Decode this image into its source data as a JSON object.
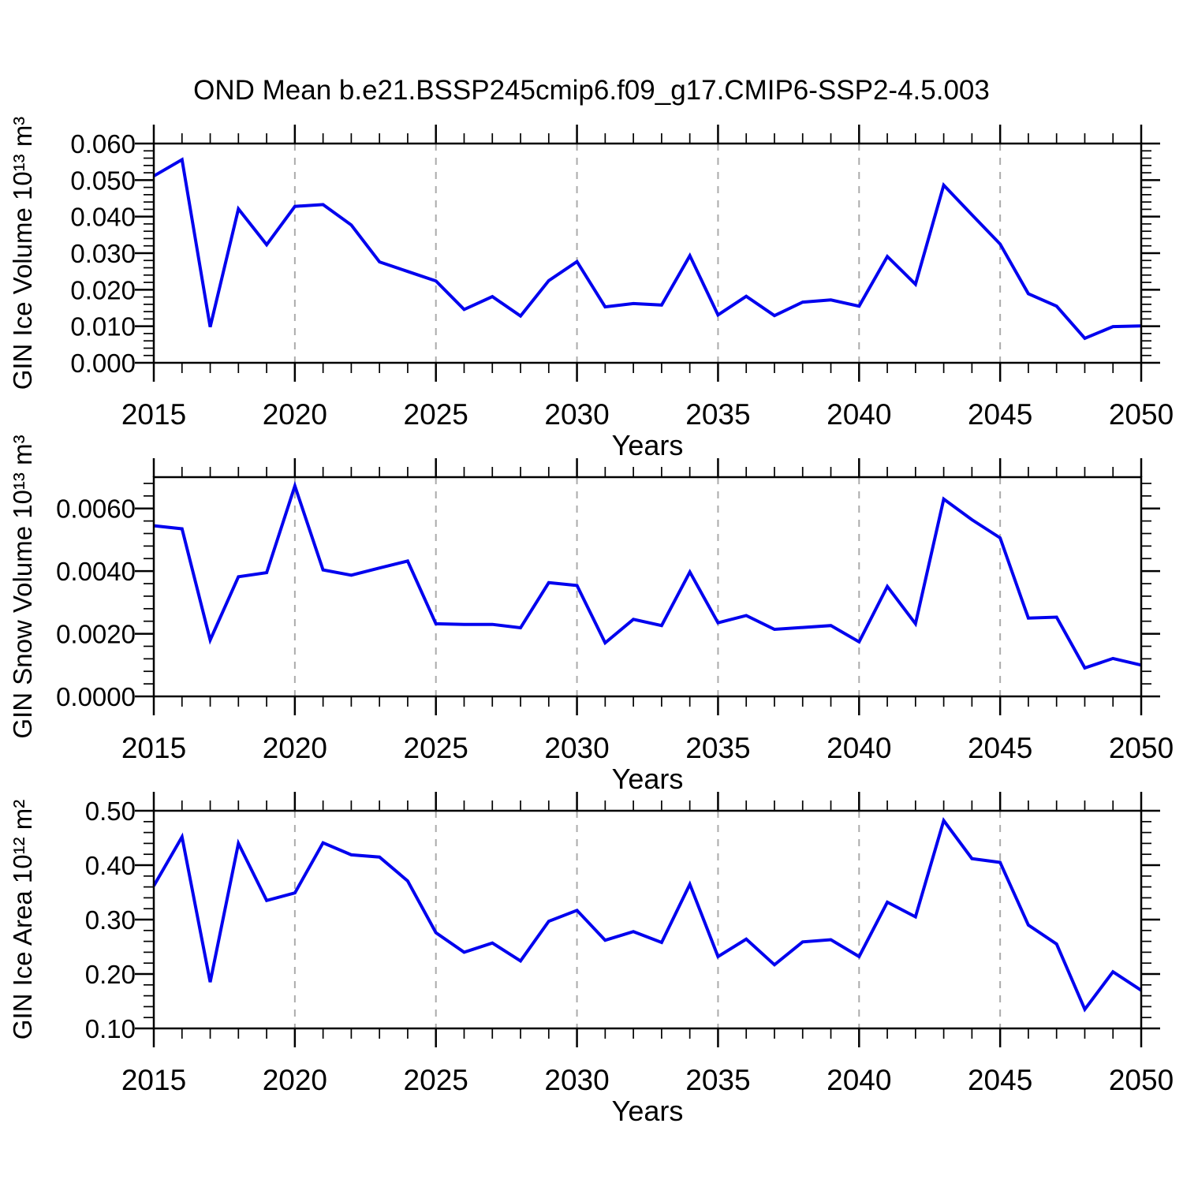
{
  "title": "OND Mean b.e21.BSSP245cmip6.f09_g17.CMIP6-SSP2-4.5.003",
  "style": {
    "background": "#FFFFFF",
    "line_color": "#0202EE",
    "grid_color": "#ABABAB",
    "axis_color": "#000000",
    "text_color": "#000000"
  },
  "chart_data": [
    {
      "type": "line",
      "name": "gin-ice-volume",
      "xlabel": "Years",
      "ylabel": "GIN Ice Volume 10¹³ m³",
      "xlim": [
        2015,
        2050
      ],
      "ylim": [
        0.0,
        0.06
      ],
      "xticks": [
        2015,
        2020,
        2025,
        2030,
        2035,
        2040,
        2045,
        2050
      ],
      "xtick_labels": [
        "2015",
        "2020",
        "2025",
        "2030",
        "2035",
        "2040",
        "2045",
        "2050"
      ],
      "xminor_step": 1,
      "yticks": [
        0.0,
        0.01,
        0.02,
        0.03,
        0.04,
        0.05,
        0.06
      ],
      "ytick_labels": [
        "0.000",
        "0.010",
        "0.020",
        "0.030",
        "0.040",
        "0.050",
        "0.060"
      ],
      "yminor_step": 0.002,
      "grid_x": [
        2020,
        2025,
        2030,
        2035,
        2040,
        2045
      ],
      "grid_on": true,
      "legend": null,
      "x": [
        2015,
        2016,
        2017,
        2018,
        2019,
        2020,
        2021,
        2022,
        2023,
        2024,
        2025,
        2026,
        2027,
        2028,
        2029,
        2030,
        2031,
        2032,
        2033,
        2034,
        2035,
        2036,
        2037,
        2038,
        2039,
        2040,
        2041,
        2042,
        2043,
        2044,
        2045,
        2046,
        2047,
        2048,
        2049,
        2050
      ],
      "values": [
        0.0511,
        0.0556,
        0.0098,
        0.0421,
        0.0323,
        0.0428,
        0.0433,
        0.0377,
        0.0276,
        0.025,
        0.0224,
        0.0146,
        0.0181,
        0.0128,
        0.0225,
        0.0277,
        0.0153,
        0.0162,
        0.0158,
        0.0293,
        0.0131,
        0.0182,
        0.0129,
        0.0166,
        0.0172,
        0.0155,
        0.0291,
        0.0215,
        0.0486,
        0.0405,
        0.0325,
        0.0189,
        0.0155,
        0.0067,
        0.0099,
        0.0101
      ]
    },
    {
      "type": "line",
      "name": "gin-snow-volume",
      "xlabel": "Years",
      "ylabel": "GIN Snow Volume 10¹³ m³",
      "xlim": [
        2015,
        2050
      ],
      "ylim": [
        0.0,
        0.007
      ],
      "xticks": [
        2015,
        2020,
        2025,
        2030,
        2035,
        2040,
        2045,
        2050
      ],
      "xtick_labels": [
        "2015",
        "2020",
        "2025",
        "2030",
        "2035",
        "2040",
        "2045",
        "2050"
      ],
      "xminor_step": 1,
      "yticks": [
        0.0,
        0.002,
        0.004,
        0.006
      ],
      "ytick_labels": [
        "0.0000",
        "0.0020",
        "0.0040",
        "0.0060"
      ],
      "yminor_step": 0.0004,
      "grid_x": [
        2020,
        2025,
        2030,
        2035,
        2040,
        2045
      ],
      "grid_on": true,
      "legend": null,
      "x": [
        2015,
        2016,
        2017,
        2018,
        2019,
        2020,
        2021,
        2022,
        2023,
        2024,
        2025,
        2026,
        2027,
        2028,
        2029,
        2030,
        2031,
        2032,
        2033,
        2034,
        2035,
        2036,
        2037,
        2038,
        2039,
        2040,
        2041,
        2042,
        2043,
        2044,
        2045,
        2046,
        2047,
        2048,
        2049,
        2050
      ],
      "values": [
        0.00545,
        0.00535,
        0.0018,
        0.00382,
        0.00395,
        0.00672,
        0.00404,
        0.00387,
        0.0041,
        0.00432,
        0.00232,
        0.0023,
        0.0023,
        0.00219,
        0.00363,
        0.00354,
        0.00171,
        0.00246,
        0.00226,
        0.00397,
        0.00235,
        0.00258,
        0.00214,
        0.0022,
        0.00226,
        0.00174,
        0.00351,
        0.00232,
        0.0063,
        0.00564,
        0.00506,
        0.0025,
        0.00253,
        0.00091,
        0.00121,
        0.001
      ]
    },
    {
      "type": "line",
      "name": "gin-ice-area",
      "xlabel": "Years",
      "ylabel": "GIN Ice Area 10¹² m²",
      "xlim": [
        2015,
        2050
      ],
      "ylim": [
        0.1,
        0.5
      ],
      "xticks": [
        2015,
        2020,
        2025,
        2030,
        2035,
        2040,
        2045,
        2050
      ],
      "xtick_labels": [
        "2015",
        "2020",
        "2025",
        "2030",
        "2035",
        "2040",
        "2045",
        "2050"
      ],
      "xminor_step": 1,
      "yticks": [
        0.1,
        0.2,
        0.3,
        0.4,
        0.5
      ],
      "ytick_labels": [
        "0.10",
        "0.20",
        "0.30",
        "0.40",
        "0.50"
      ],
      "yminor_step": 0.02,
      "grid_x": [
        2020,
        2025,
        2030,
        2035,
        2040,
        2045
      ],
      "grid_on": true,
      "legend": null,
      "x": [
        2015,
        2016,
        2017,
        2018,
        2019,
        2020,
        2021,
        2022,
        2023,
        2024,
        2025,
        2026,
        2027,
        2028,
        2029,
        2030,
        2031,
        2032,
        2033,
        2034,
        2035,
        2036,
        2037,
        2038,
        2039,
        2040,
        2041,
        2042,
        2043,
        2044,
        2045,
        2046,
        2047,
        2048,
        2049,
        2050
      ],
      "values": [
        0.362,
        0.452,
        0.185,
        0.44,
        0.335,
        0.349,
        0.441,
        0.419,
        0.415,
        0.371,
        0.276,
        0.24,
        0.257,
        0.224,
        0.297,
        0.317,
        0.262,
        0.278,
        0.258,
        0.365,
        0.232,
        0.264,
        0.217,
        0.259,
        0.263,
        0.232,
        0.332,
        0.305,
        0.482,
        0.412,
        0.405,
        0.29,
        0.255,
        0.135,
        0.204,
        0.17
      ]
    }
  ]
}
